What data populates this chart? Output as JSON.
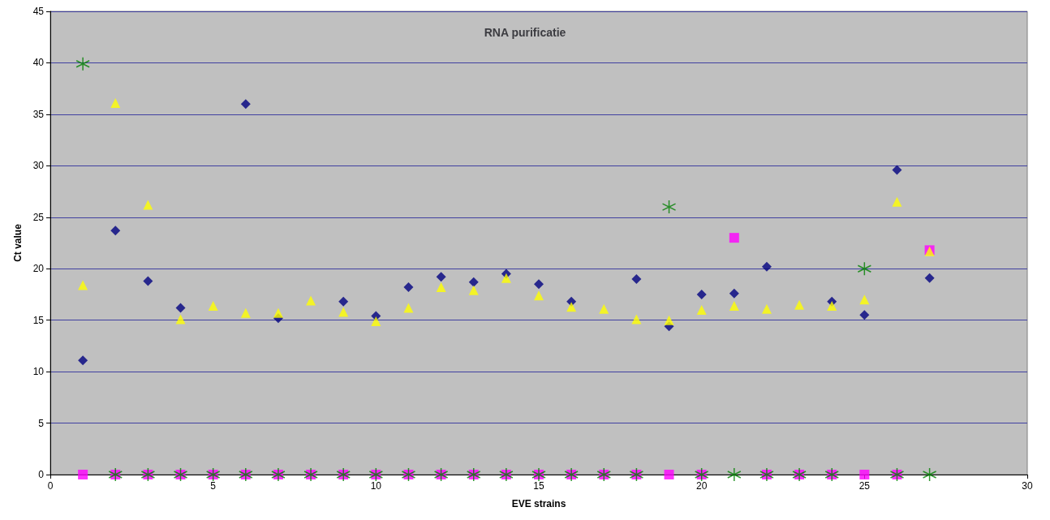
{
  "chart_data": {
    "type": "scatter",
    "title": "RNA purificatie",
    "xlabel": "EVE strains",
    "ylabel": "Ct value",
    "x": [
      1,
      2,
      3,
      4,
      5,
      6,
      7,
      8,
      9,
      10,
      11,
      12,
      13,
      14,
      15,
      16,
      17,
      18,
      19,
      20,
      21,
      22,
      23,
      24,
      25,
      26,
      27
    ],
    "series": [
      {
        "color": "#000080",
        "marker": "diamond",
        "values": [
          11.1,
          23.7,
          18.8,
          16.2,
          null,
          36.0,
          15.2,
          null,
          16.8,
          15.4,
          18.2,
          19.2,
          18.7,
          19.5,
          18.5,
          16.8,
          null,
          19.0,
          14.4,
          17.5,
          17.6,
          20.2,
          null,
          16.8,
          15.5,
          29.6,
          19.1
        ]
      },
      {
        "color": "#ff00ff",
        "marker": "square",
        "values": [
          0,
          0,
          0,
          0,
          0,
          0,
          0,
          0,
          0,
          0,
          0,
          0,
          0,
          0,
          0,
          0,
          0,
          0,
          0,
          0,
          23.0,
          0,
          0,
          0,
          0,
          0,
          21.8
        ]
      },
      {
        "color": "#ffff00",
        "marker": "triangle",
        "values": [
          18.4,
          36.1,
          26.2,
          15.1,
          16.4,
          15.7,
          15.7,
          16.9,
          15.8,
          14.9,
          16.2,
          18.2,
          17.9,
          19.1,
          17.4,
          16.3,
          16.1,
          15.1,
          15.0,
          16.0,
          16.4,
          16.1,
          16.5,
          16.4,
          17.0,
          26.5,
          21.7
        ]
      },
      {
        "color": "#008000",
        "marker": "cross",
        "values": [
          39.9,
          0,
          0,
          0,
          0,
          0,
          0,
          0,
          0,
          0,
          0,
          0,
          0,
          0,
          0,
          0,
          0,
          0,
          26.0,
          0,
          0,
          0,
          0,
          0,
          20.0,
          0,
          0
        ]
      }
    ],
    "xlim": [
      0,
      30
    ],
    "xticks": [
      0,
      5,
      10,
      15,
      20,
      25,
      30
    ],
    "ylim": [
      0,
      45
    ],
    "yticks": [
      0,
      5,
      10,
      15,
      20,
      25,
      30,
      35,
      40,
      45
    ],
    "grid": "y"
  }
}
